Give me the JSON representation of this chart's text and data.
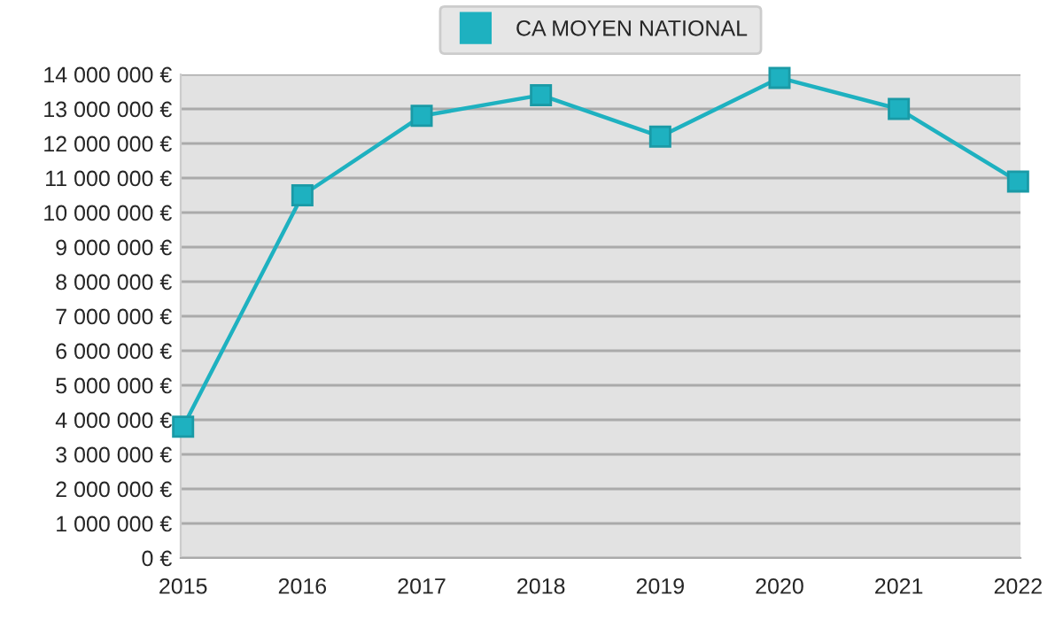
{
  "chart_data": {
    "type": "line",
    "categories": [
      "2015",
      "2016",
      "2017",
      "2018",
      "2019",
      "2020",
      "2021",
      "2022"
    ],
    "series": [
      {
        "name": "CA MOYEN NATIONAL",
        "color": "#1eb1c0",
        "values": [
          3800000,
          10500000,
          12800000,
          13400000,
          12200000,
          13900000,
          13000000,
          10900000
        ]
      }
    ],
    "ylim": [
      0,
      14000000
    ],
    "yticks": [
      {
        "value": 0,
        "label": "0 €"
      },
      {
        "value": 1000000,
        "label": "1 000 000 €"
      },
      {
        "value": 2000000,
        "label": "2 000 000 €"
      },
      {
        "value": 3000000,
        "label": "3 000 000 €"
      },
      {
        "value": 4000000,
        "label": "4 000 000 €"
      },
      {
        "value": 5000000,
        "label": "5 000 000 €"
      },
      {
        "value": 6000000,
        "label": "6 000 000 €"
      },
      {
        "value": 7000000,
        "label": "7 000 000 €"
      },
      {
        "value": 8000000,
        "label": "8 000 000 €"
      },
      {
        "value": 9000000,
        "label": "9 000 000 €"
      },
      {
        "value": 10000000,
        "label": "10 000 000 €"
      },
      {
        "value": 11000000,
        "label": "11 000 000 €"
      },
      {
        "value": 12000000,
        "label": "12 000 000 €"
      },
      {
        "value": 13000000,
        "label": "13 000 000 €"
      },
      {
        "value": 14000000,
        "label": "14 000 000 €"
      }
    ],
    "grid": "y",
    "legend": "top",
    "marker": "square",
    "line_style": "solid"
  }
}
